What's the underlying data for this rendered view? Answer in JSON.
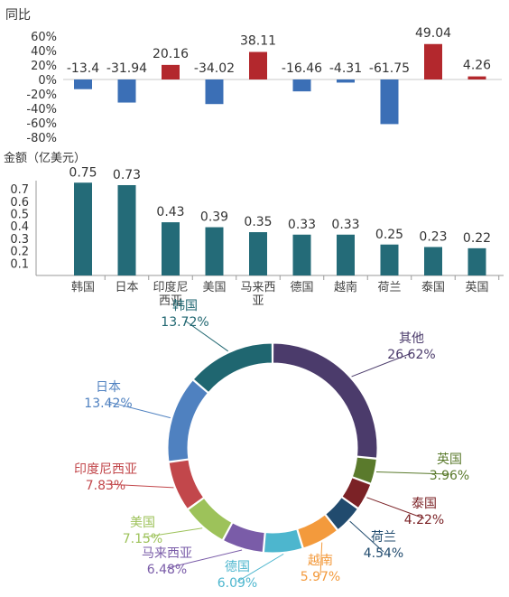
{
  "colors": {
    "positive": "#B3282D",
    "negative": "#3B6FB6",
    "amount_bar": "#246B78",
    "axis": "#9a9a9a",
    "text": "#333333"
  },
  "chart_data": [
    {
      "type": "bar",
      "ylabel": "同比",
      "unit": "%",
      "ylim": [
        -80,
        60
      ],
      "yticks": [
        "60%",
        "40%",
        "20%",
        "0%",
        "-20%",
        "-40%",
        "-60%",
        "-80%"
      ],
      "categories": [
        "韩国",
        "日本",
        "印度尼西亚",
        "美国",
        "马来西亚",
        "德国",
        "越南",
        "荷兰",
        "泰国",
        "英国"
      ],
      "values": [
        -13.4,
        -31.94,
        20.16,
        -34.02,
        38.11,
        -16.46,
        -4.31,
        -61.75,
        49.04,
        4.26
      ],
      "value_labels": [
        "-13.4",
        "-31.94",
        "20.16",
        "-34.02",
        "38.11",
        "-16.46",
        "-4.31",
        "-61.75",
        "49.04",
        "4.26"
      ],
      "grid": false
    },
    {
      "type": "bar",
      "ylabel": "金额（亿美元）",
      "ylim": [
        0,
        0.8
      ],
      "yticks": [
        "0.7",
        "0.6",
        "0.5",
        "0.4",
        "0.3",
        "0.2",
        "0.1"
      ],
      "categories": [
        "韩国",
        "日本",
        "印度尼西亚",
        "美国",
        "马来西亚",
        "德国",
        "越南",
        "荷兰",
        "泰国",
        "英国"
      ],
      "category_lines": [
        [
          "韩国"
        ],
        [
          "日本"
        ],
        [
          "印度尼",
          "西亚"
        ],
        [
          "美国"
        ],
        [
          "马来西",
          "亚"
        ],
        [
          "德国"
        ],
        [
          "越南"
        ],
        [
          "荷兰"
        ],
        [
          "泰国"
        ],
        [
          "英国"
        ]
      ],
      "values": [
        0.75,
        0.73,
        0.43,
        0.39,
        0.35,
        0.33,
        0.33,
        0.25,
        0.23,
        0.22
      ],
      "value_labels": [
        "0.75",
        "0.73",
        "0.43",
        "0.39",
        "0.35",
        "0.33",
        "0.33",
        "0.25",
        "0.23",
        "0.22"
      ],
      "grid": false
    },
    {
      "type": "pie",
      "donut": true,
      "labels": [
        "其他",
        "英国",
        "泰国",
        "荷兰",
        "越南",
        "德国",
        "马来西亚",
        "美国",
        "印度尼西亚",
        "日本",
        "韩国"
      ],
      "values": [
        26.62,
        3.96,
        4.22,
        4.54,
        5.97,
        6.09,
        6.48,
        7.15,
        7.83,
        13.42,
        13.72
      ],
      "percent_labels": [
        "26.62%",
        "3.96%",
        "4.22%",
        "4.54%",
        "5.97%",
        "6.09%",
        "6.48%",
        "7.15%",
        "7.83%",
        "13.42%",
        "13.72%"
      ],
      "colors": [
        "#4B3B6B",
        "#5A7A2C",
        "#7B2226",
        "#214B6E",
        "#F39A3C",
        "#4DB6CE",
        "#7A5CA8",
        "#9DC25A",
        "#C2474B",
        "#4F81C0",
        "#1F6670"
      ]
    }
  ]
}
